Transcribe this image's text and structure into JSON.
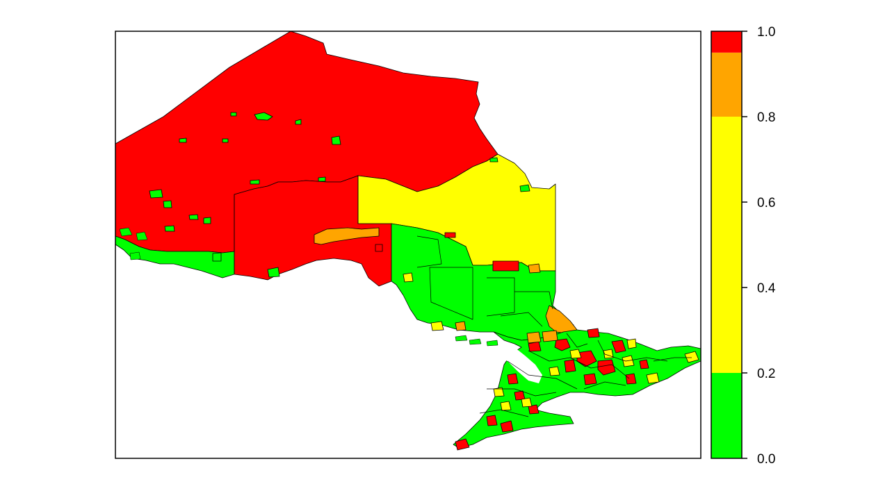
{
  "map": {
    "colors": {
      "background": "#ffffff",
      "border": "#000000",
      "red": "#ff0000",
      "orange": "#ffa500",
      "yellow": "#ffff00",
      "green": "#00ff00"
    }
  },
  "legend": {
    "breaks": [
      0.0,
      0.2,
      0.8,
      0.95,
      1.0
    ],
    "colors": [
      "#00ff00",
      "#ffff00",
      "#ffa500",
      "#ff0000"
    ],
    "tick_values": [
      0.0,
      0.2,
      0.4,
      0.6,
      0.8,
      1.0
    ],
    "tick_labels": [
      "0.0",
      "0.2",
      "0.4",
      "0.6",
      "0.8",
      "1.0"
    ]
  }
}
